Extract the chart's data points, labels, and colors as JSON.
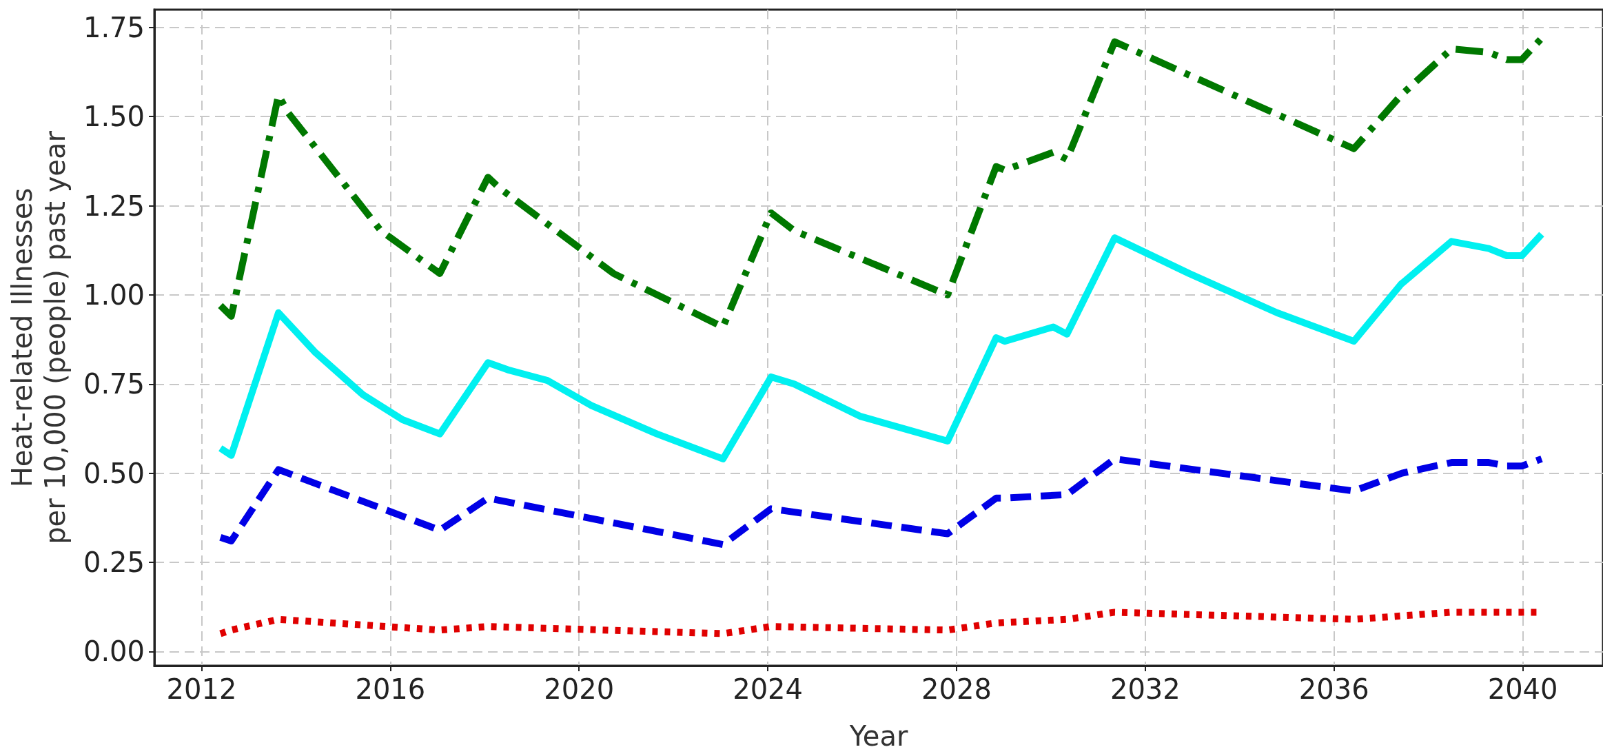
{
  "chart_data": {
    "type": "line",
    "xlabel": "Year",
    "ylabel": "Heat-related Illnesses\nper 10,000 (people) past year",
    "xlim": [
      2011,
      2041.7
    ],
    "xticks": [
      2012,
      2016,
      2020,
      2024,
      2028,
      2032,
      2036,
      2040
    ],
    "ylim": [
      -0.04,
      1.8
    ],
    "yticks": [
      {
        "value": 0,
        "label": "0.00"
      },
      {
        "value": 0.25,
        "label": "0.25"
      },
      {
        "value": 0.5,
        "label": "0.50"
      },
      {
        "value": 0.75,
        "label": "0.75"
      },
      {
        "value": 1,
        "label": "1.00"
      },
      {
        "value": 1.25,
        "label": "1.25"
      },
      {
        "value": 1.5,
        "label": "1.50"
      },
      {
        "value": 1.75,
        "label": "1.75"
      }
    ],
    "grid": true,
    "marker": "none",
    "series": [
      {
        "color": "#007800",
        "line_style": "dashdot",
        "x": [
          2012.4,
          2012.63,
          2013.63,
          2013.84,
          2015.8,
          2017.05,
          2018.07,
          2018.31,
          2020.73,
          2023.05,
          2024.07,
          2024.56,
          2027.81,
          2028.84,
          2029.02,
          2030.05,
          2030.34,
          2031.35,
          2036.42,
          2037.42,
          2038.49,
          2039.28,
          2039.66,
          2039.98,
          2040.4
        ],
        "values": [
          0.97,
          0.94,
          1.56,
          1.51,
          1.18,
          1.06,
          1.33,
          1.3,
          1.06,
          0.91,
          1.23,
          1.18,
          1.0,
          1.36,
          1.35,
          1.4,
          1.38,
          1.71,
          1.41,
          1.56,
          1.69,
          1.68,
          1.66,
          1.66,
          1.72
        ]
      },
      {
        "color": "#00f0f0",
        "line_style": "solid",
        "x": [
          2012.4,
          2012.63,
          2013.63,
          2014.4,
          2015.42,
          2016.26,
          2017.05,
          2018.07,
          2018.49,
          2019.33,
          2020.26,
          2021.65,
          2023.05,
          2024.07,
          2024.56,
          2025.95,
          2027.81,
          2028.84,
          2029.02,
          2030.05,
          2030.34,
          2031.35,
          2032.93,
          2034.79,
          2036.42,
          2037.42,
          2038.49,
          2039.28,
          2039.66,
          2039.98,
          2040.4
        ],
        "values": [
          0.57,
          0.55,
          0.95,
          0.84,
          0.72,
          0.65,
          0.61,
          0.81,
          0.79,
          0.76,
          0.69,
          0.61,
          0.54,
          0.77,
          0.75,
          0.66,
          0.59,
          0.88,
          0.87,
          0.91,
          0.89,
          1.16,
          1.06,
          0.95,
          0.87,
          1.03,
          1.15,
          1.13,
          1.11,
          1.11,
          1.17
        ]
      },
      {
        "color": "#0000e6",
        "line_style": "dashed",
        "x": [
          2012.4,
          2012.63,
          2013.63,
          2017.05,
          2018.07,
          2023.05,
          2024.07,
          2027.81,
          2028.84,
          2029.02,
          2030.34,
          2031.35,
          2036.42,
          2037.44,
          2038.49,
          2039.28,
          2039.66,
          2039.98,
          2040.4
        ],
        "values": [
          0.32,
          0.31,
          0.51,
          0.34,
          0.43,
          0.3,
          0.4,
          0.33,
          0.43,
          0.43,
          0.44,
          0.54,
          0.45,
          0.5,
          0.53,
          0.53,
          0.52,
          0.52,
          0.54
        ]
      },
      {
        "color": "#e00000",
        "line_style": "dotted",
        "x": [
          2012.4,
          2012.63,
          2013.63,
          2017.05,
          2018.07,
          2023.05,
          2024.07,
          2027.81,
          2028.84,
          2030.34,
          2031.35,
          2036.42,
          2038.49,
          2040.4
        ],
        "values": [
          0.05,
          0.06,
          0.09,
          0.06,
          0.07,
          0.05,
          0.07,
          0.06,
          0.08,
          0.09,
          0.11,
          0.09,
          0.11,
          0.11
        ]
      }
    ]
  }
}
